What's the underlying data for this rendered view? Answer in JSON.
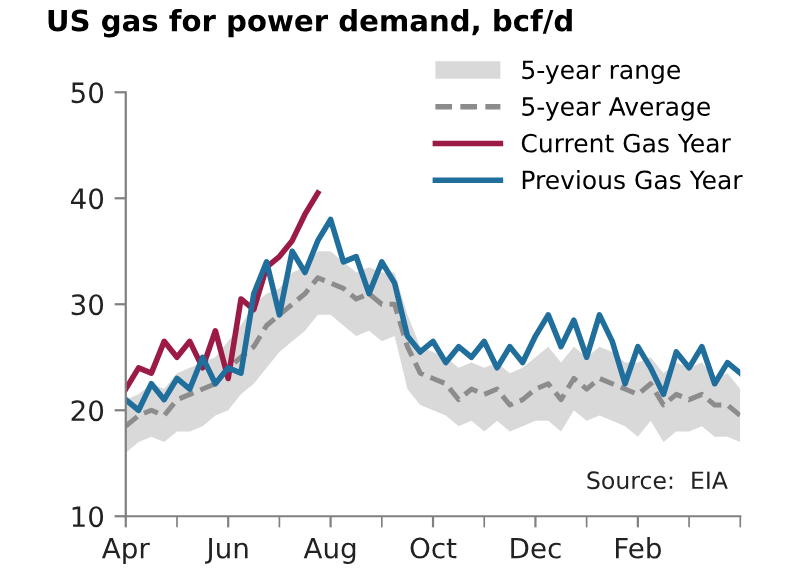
{
  "chart_data": {
    "type": "line",
    "title": "US gas for power demand, bcf/d",
    "categories": [
      "Apr",
      null,
      null,
      null,
      null,
      null,
      null,
      null,
      "Jun",
      null,
      null,
      null,
      null,
      null,
      null,
      null,
      "Aug",
      null,
      null,
      null,
      null,
      null,
      null,
      null,
      "Oct",
      null,
      null,
      null,
      null,
      null,
      null,
      null,
      "Dec",
      null,
      null,
      null,
      null,
      null,
      null,
      null,
      "Feb",
      null,
      null,
      null,
      null,
      null,
      null,
      null,
      null
    ],
    "series": [
      {
        "name": "5-year Average",
        "line_style": "dashed",
        "color": "#8c8c8c",
        "lower": [
          16,
          17,
          17.5,
          17,
          18,
          18,
          18.5,
          19.5,
          20,
          21.5,
          22.5,
          24,
          25.5,
          26.5,
          27.5,
          29,
          29,
          28,
          27,
          27.5,
          26.5,
          27,
          22,
          20.5,
          20,
          19.5,
          18.5,
          19,
          18,
          19,
          18,
          18.5,
          19,
          19,
          18,
          20,
          19,
          19.5,
          19,
          18.5,
          17.5,
          19,
          17,
          18,
          18,
          18.5,
          17.5,
          17.5,
          17
        ],
        "upper": [
          21,
          21.5,
          22.5,
          22,
          23.5,
          24,
          24.5,
          25,
          26.5,
          28,
          30,
          31,
          31.5,
          33,
          33.5,
          35,
          35,
          34,
          33,
          33.5,
          33,
          33,
          29,
          26,
          25.5,
          25,
          24,
          24.5,
          24,
          24.5,
          23.5,
          24,
          25,
          26,
          24.5,
          26,
          25,
          26,
          25.5,
          24.5,
          24.5,
          25,
          23.5,
          24.5,
          24,
          24.5,
          23,
          23.5,
          22
        ],
        "values": [
          18.5,
          19.5,
          20,
          19.5,
          21,
          21.5,
          22,
          22.5,
          24,
          25,
          26,
          28,
          29,
          30,
          31,
          32.5,
          32,
          31.5,
          30.5,
          31,
          30,
          30,
          26,
          23.5,
          23,
          22.5,
          21,
          22,
          21.5,
          22,
          20.5,
          21,
          22,
          22.5,
          21,
          23,
          22,
          23,
          22.5,
          22,
          21.5,
          22.5,
          20.5,
          21.5,
          21,
          21.5,
          20.5,
          20.5,
          19.5
        ]
      },
      {
        "name": "Current Gas Year",
        "color": "#9b1b46",
        "values": [
          22,
          24,
          23.5,
          26.5,
          25,
          26.5,
          24,
          27.5,
          23,
          30.5,
          29.5,
          33.5,
          34.5,
          36,
          38.5,
          40.5,
          null,
          null,
          null,
          null,
          null,
          null,
          null,
          null,
          null,
          null,
          null,
          null,
          null,
          null,
          null,
          null,
          null,
          null,
          null,
          null,
          null,
          null,
          null,
          null,
          null,
          null,
          null,
          null,
          null,
          null,
          null,
          null,
          null
        ]
      },
      {
        "name": "Previous Gas Year",
        "color": "#1f6e9c",
        "values": [
          21,
          20,
          22.5,
          21,
          23,
          22,
          25,
          22.5,
          24,
          23.5,
          31,
          34,
          29,
          35,
          33,
          36,
          38,
          34,
          34.5,
          31,
          34,
          32,
          27,
          25.5,
          26.5,
          24.5,
          26,
          25,
          26.5,
          24,
          26,
          24.5,
          27,
          29,
          26,
          28.5,
          25,
          29,
          26.5,
          22.5,
          26,
          24,
          21.5,
          25.5,
          24,
          26,
          22.5,
          24.5,
          23.5
        ]
      }
    ],
    "ylim": [
      10,
      50
    ],
    "yticks": [
      10,
      20,
      30,
      40,
      50
    ],
    "grid": false,
    "legend": "top right",
    "annotations": [
      "5-year range",
      "Source:  EIA"
    ]
  }
}
